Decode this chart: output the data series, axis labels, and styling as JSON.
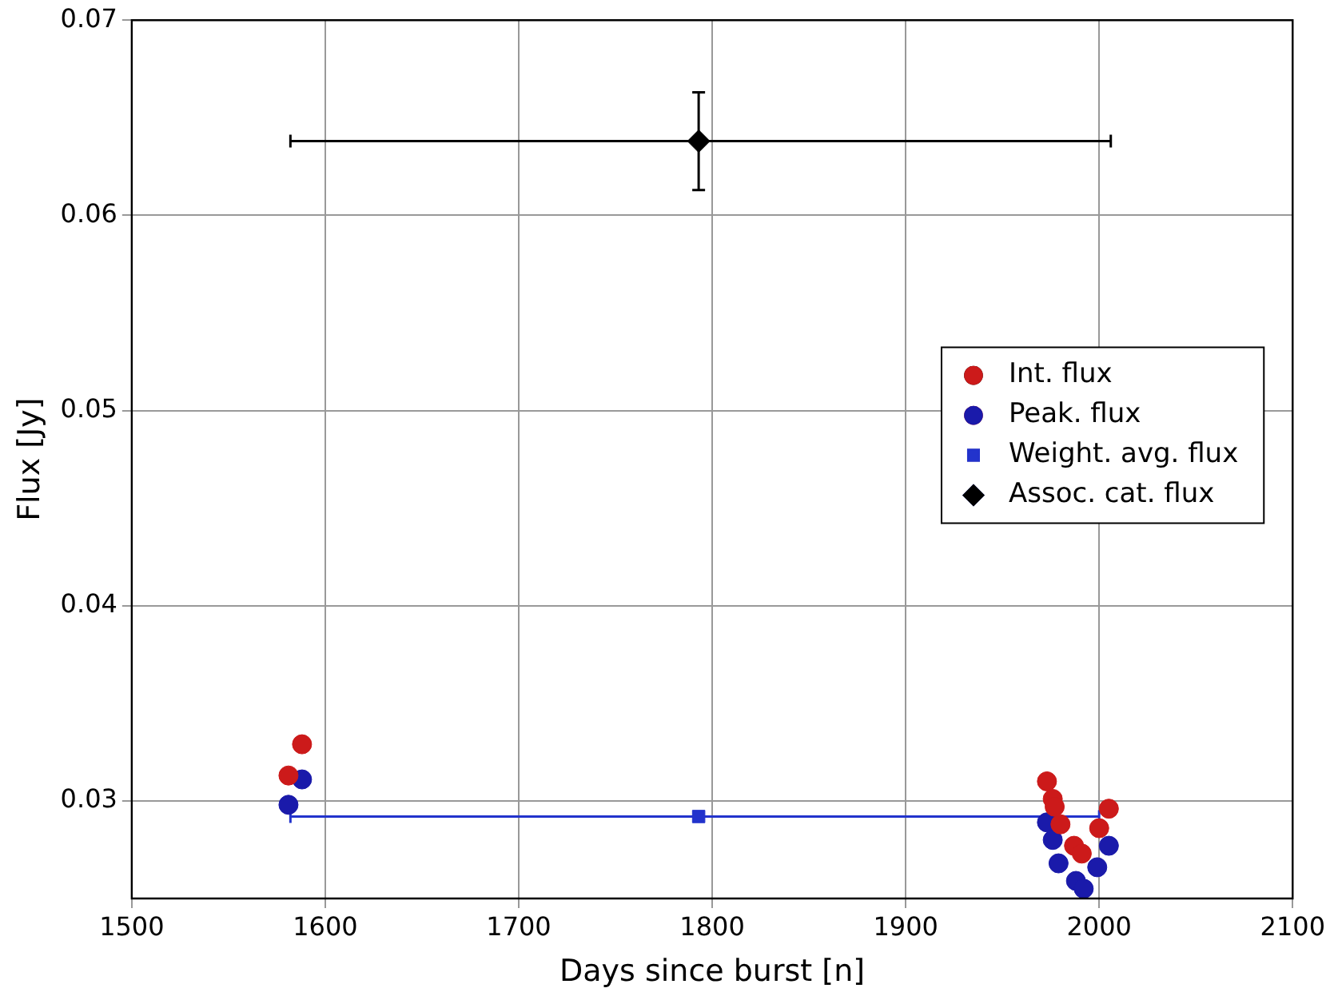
{
  "chart_data": {
    "type": "scatter",
    "xlabel": "Days since burst [n]",
    "ylabel": "Flux [Jy]",
    "xlim": [
      1500,
      2100
    ],
    "xticks": [
      1500,
      1600,
      1700,
      1800,
      1900,
      2000,
      2100
    ],
    "ylim": [
      0.025,
      0.07
    ],
    "yticks": [
      0.03,
      0.04,
      0.05,
      0.06,
      0.07
    ],
    "grid": true,
    "legend": "center right",
    "series": [
      {
        "name": "Int. flux",
        "color": "#cc1a1a",
        "marker": "circle",
        "x": [
          1581,
          1588,
          1973,
          1976,
          1977,
          1980,
          1987,
          1991,
          2000,
          2005
        ],
        "values": [
          0.0313,
          0.0329,
          0.031,
          0.0301,
          0.0297,
          0.0288,
          0.0277,
          0.0273,
          0.0286,
          0.0296
        ]
      },
      {
        "name": "Peak. flux",
        "color": "#1a1aaa",
        "marker": "circle",
        "x": [
          1581,
          1588,
          1973,
          1976,
          1979,
          1988,
          1992,
          1999,
          2005
        ],
        "values": [
          0.0298,
          0.0311,
          0.0289,
          0.028,
          0.0268,
          0.0259,
          0.0255,
          0.0266,
          0.0277
        ]
      },
      {
        "name": "Weight. avg. flux",
        "color": "#2233cc",
        "marker": "square",
        "x": [
          1793
        ],
        "values": [
          0.0292
        ],
        "xerrors": [
          [
            1582,
            2000
          ]
        ]
      },
      {
        "name": "Assoc. cat. flux",
        "color": "#000000",
        "marker": "diamond",
        "x": [
          1793
        ],
        "values": [
          0.0638
        ],
        "errors": [
          0.0025
        ],
        "xerrors": [
          [
            1582,
            2006
          ]
        ]
      }
    ]
  }
}
